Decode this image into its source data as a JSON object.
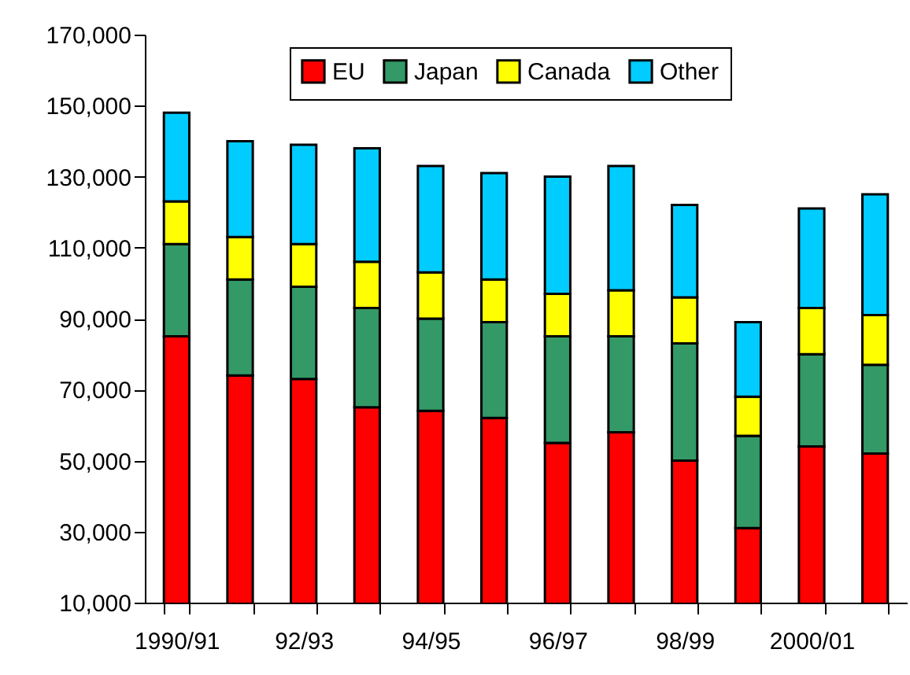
{
  "chart_data": {
    "type": "bar",
    "stacked": true,
    "categories": [
      "1990/91",
      null,
      "92/93",
      null,
      "94/95",
      null,
      "96/97",
      null,
      "98/99",
      null,
      "2000/01",
      null
    ],
    "series": [
      {
        "name": "EU",
        "color": "#ff0000",
        "values": [
          85000,
          74000,
          73000,
          65000,
          64000,
          62000,
          55000,
          58000,
          50000,
          31000,
          54000,
          52000
        ]
      },
      {
        "name": "Japan",
        "color": "#339966",
        "values": [
          26000,
          27000,
          26000,
          28000,
          26000,
          27000,
          30000,
          27000,
          33000,
          26000,
          26000,
          25000
        ]
      },
      {
        "name": "Canada",
        "color": "#ffff00",
        "values": [
          12000,
          12000,
          12000,
          13000,
          13000,
          12000,
          12000,
          13000,
          13000,
          11000,
          13000,
          14000
        ]
      },
      {
        "name": "Other",
        "color": "#00ccff",
        "values": [
          25000,
          27000,
          28000,
          32000,
          30000,
          30000,
          33000,
          35000,
          26000,
          21000,
          28000,
          34000
        ]
      }
    ],
    "ylim": [
      10000,
      170000
    ],
    "yticks": [
      {
        "value": 10000,
        "label": "10,000"
      },
      {
        "value": 30000,
        "label": "30,000"
      },
      {
        "value": 50000,
        "label": "50,000"
      },
      {
        "value": 70000,
        "label": "70,000"
      },
      {
        "value": 90000,
        "label": "90,000"
      },
      {
        "value": 110000,
        "label": "110,000"
      },
      {
        "value": 130000,
        "label": "130,000"
      },
      {
        "value": 150000,
        "label": "150,000"
      },
      {
        "value": 170000,
        "label": "170,000"
      }
    ],
    "grid": false,
    "legend": "top"
  }
}
